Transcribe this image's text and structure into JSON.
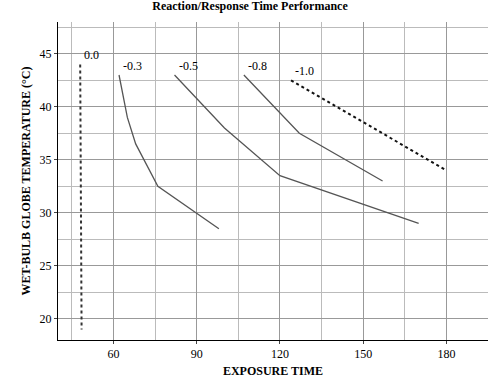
{
  "chart_data": {
    "type": "line",
    "title": "Reaction/Response Time Performance",
    "x_label": "EXPOSURE TIME",
    "y_label": "WET-BULB GLOBE TEMPERATURE (°C)",
    "xlim": [
      40,
      195
    ],
    "ylim": [
      18,
      48
    ],
    "xticks": [
      60,
      90,
      120,
      150,
      180
    ],
    "yticks": [
      20,
      25,
      30,
      35,
      40,
      45
    ],
    "grid": true,
    "series": [
      {
        "name": "0.0",
        "color": "#333333",
        "line_style": "dotted",
        "x": [
          48,
          48.5
        ],
        "values": [
          44,
          19
        ]
      },
      {
        "name": "-0.3",
        "color": "#555555",
        "line_style": "solid",
        "x": [
          62,
          65,
          68,
          76,
          98
        ],
        "values": [
          43,
          39,
          36.5,
          32.5,
          28.5
        ]
      },
      {
        "name": "-0.5",
        "color": "#555555",
        "line_style": "solid",
        "x": [
          82,
          100,
          120,
          170
        ],
        "values": [
          43,
          38,
          33.5,
          29
        ]
      },
      {
        "name": "-0.8",
        "color": "#555555",
        "line_style": "solid",
        "x": [
          107,
          127,
          157
        ],
        "values": [
          43,
          37.5,
          33
        ]
      },
      {
        "name": "-1.0",
        "color": "#111111",
        "line_style": "dotted",
        "x": [
          124,
          180
        ],
        "values": [
          42.5,
          34
        ]
      }
    ]
  }
}
